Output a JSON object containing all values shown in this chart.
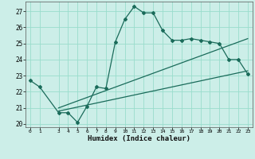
{
  "xlabel": "Humidex (Indice chaleur)",
  "bg_color": "#cceee8",
  "grid_color": "#99ddcc",
  "line_color": "#1a6b5a",
  "xlim": [
    -0.5,
    23.5
  ],
  "ylim": [
    19.8,
    27.6
  ],
  "yticks": [
    20,
    21,
    22,
    23,
    24,
    25,
    26,
    27
  ],
  "xticks": [
    0,
    1,
    3,
    4,
    5,
    6,
    7,
    8,
    9,
    10,
    11,
    12,
    13,
    14,
    15,
    16,
    17,
    18,
    19,
    20,
    21,
    22,
    23
  ],
  "curve1_x": [
    0,
    1,
    3,
    4,
    5,
    6,
    7,
    8,
    9,
    10,
    11,
    12,
    13,
    14,
    15,
    16,
    17,
    18,
    19,
    20,
    21,
    22,
    23
  ],
  "curve1_y": [
    22.7,
    22.3,
    20.7,
    20.7,
    20.1,
    21.1,
    22.3,
    22.2,
    25.1,
    26.5,
    27.3,
    26.9,
    26.9,
    25.8,
    25.2,
    25.2,
    25.3,
    25.2,
    25.1,
    25.0,
    24.0,
    24.0,
    23.1
  ],
  "line1_x": [
    3,
    23
  ],
  "line1_y": [
    21.0,
    25.3
  ],
  "line2_x": [
    3,
    23
  ],
  "line2_y": [
    20.8,
    23.3
  ]
}
